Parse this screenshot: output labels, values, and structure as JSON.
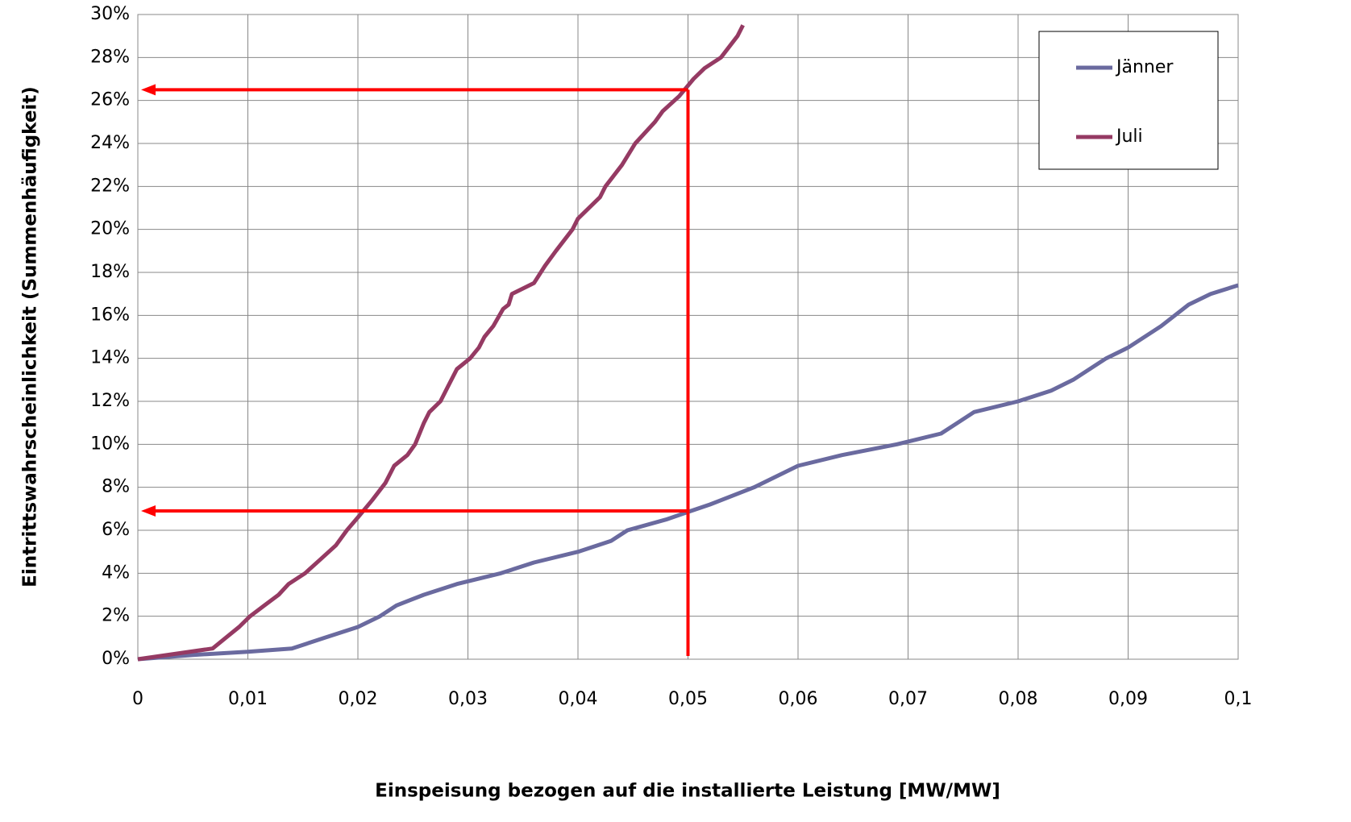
{
  "chart_data": {
    "type": "line",
    "x_label": "Einspeisung bezogen auf die installierte Leistung [MW/MW]",
    "y_label": "Eintrittswahrscheinlichkeit (Summenhäufigkeit)",
    "xlim": [
      0,
      0.1
    ],
    "ylim": [
      0,
      30
    ],
    "xticks": [
      0,
      {
        "value": 0.01,
        "label": "0,01"
      },
      {
        "value": 0.02,
        "label": "0,02"
      },
      {
        "value": 0.03,
        "label": "0,03"
      },
      {
        "value": 0.04,
        "label": "0,04"
      },
      {
        "value": 0.05,
        "label": "0,05"
      },
      {
        "value": 0.06,
        "label": "0,06"
      },
      {
        "value": 0.07,
        "label": "0,07"
      },
      {
        "value": 0.08,
        "label": "0,08"
      },
      {
        "value": 0.09,
        "label": "0,09"
      },
      {
        "value": 0.1,
        "label": "0,1"
      }
    ],
    "yticks": [
      {
        "value": 0,
        "label": "0%"
      },
      {
        "value": 2,
        "label": "2%"
      },
      {
        "value": 4,
        "label": "4%"
      },
      {
        "value": 6,
        "label": "6%"
      },
      {
        "value": 8,
        "label": "8%"
      },
      {
        "value": 10,
        "label": "10%"
      },
      {
        "value": 12,
        "label": "12%"
      },
      {
        "value": 14,
        "label": "14%"
      },
      {
        "value": 16,
        "label": "16%"
      },
      {
        "value": 18,
        "label": "18%"
      },
      {
        "value": 20,
        "label": "20%"
      },
      {
        "value": 22,
        "label": "22%"
      },
      {
        "value": 24,
        "label": "24%"
      },
      {
        "value": 26,
        "label": "26%"
      },
      {
        "value": 28,
        "label": "28%"
      },
      {
        "value": 30,
        "label": "30%"
      }
    ],
    "grid": true,
    "legend": "upper right",
    "series": [
      {
        "name": "Jänner",
        "color": "#6a6a9f",
        "x": [
          0,
          0.005,
          0.01,
          0.014,
          0.017,
          0.02,
          0.022,
          0.0235,
          0.026,
          0.029,
          0.033,
          0.036,
          0.04,
          0.043,
          0.0445,
          0.048,
          0.05,
          0.052,
          0.056,
          0.06,
          0.064,
          0.069,
          0.073,
          0.0745,
          0.076,
          0.08,
          0.083,
          0.085,
          0.088,
          0.09,
          0.093,
          0.0955,
          0.0975,
          0.1
        ],
        "values": [
          0,
          0.2,
          0.35,
          0.5,
          1.0,
          1.5,
          2.0,
          2.5,
          3.0,
          3.5,
          4.0,
          4.5,
          5.0,
          5.5,
          6.0,
          6.5,
          6.85,
          7.2,
          8.0,
          9.0,
          9.5,
          10.0,
          10.5,
          11.0,
          11.5,
          12.0,
          12.5,
          13.0,
          14.0,
          14.5,
          15.5,
          16.5,
          17.0,
          17.4
        ]
      },
      {
        "name": "Juli",
        "color": "#953a63",
        "x": [
          0,
          0.0068,
          0.008,
          0.0092,
          0.0102,
          0.0115,
          0.0128,
          0.0137,
          0.0152,
          0.0165,
          0.018,
          0.019,
          0.02,
          0.0213,
          0.0225,
          0.0233,
          0.0245,
          0.0252,
          0.026,
          0.0265,
          0.0275,
          0.0282,
          0.029,
          0.0302,
          0.031,
          0.0315,
          0.0323,
          0.0332,
          0.0337,
          0.034,
          0.036,
          0.037,
          0.038,
          0.0395,
          0.04,
          0.042,
          0.0425,
          0.044,
          0.0452,
          0.047,
          0.0477,
          0.0492,
          0.0505,
          0.0515,
          0.053,
          0.0545,
          0.055
        ],
        "values": [
          0,
          0.5,
          1.0,
          1.5,
          2.0,
          2.5,
          3.0,
          3.5,
          4.0,
          4.6,
          5.3,
          6.0,
          6.6,
          7.4,
          8.2,
          9.0,
          9.5,
          10.0,
          11.0,
          11.5,
          12.0,
          12.7,
          13.5,
          14.0,
          14.5,
          15.0,
          15.5,
          16.3,
          16.5,
          17.0,
          17.5,
          18.3,
          19.0,
          20.0,
          20.5,
          21.5,
          22.0,
          23.0,
          24.0,
          25.0,
          25.5,
          26.2,
          27.0,
          27.5,
          28.0,
          29.0,
          29.5
        ]
      }
    ],
    "guides": {
      "x": 0.05,
      "y": [
        26.5,
        6.9
      ],
      "color": "#ff0000"
    }
  }
}
